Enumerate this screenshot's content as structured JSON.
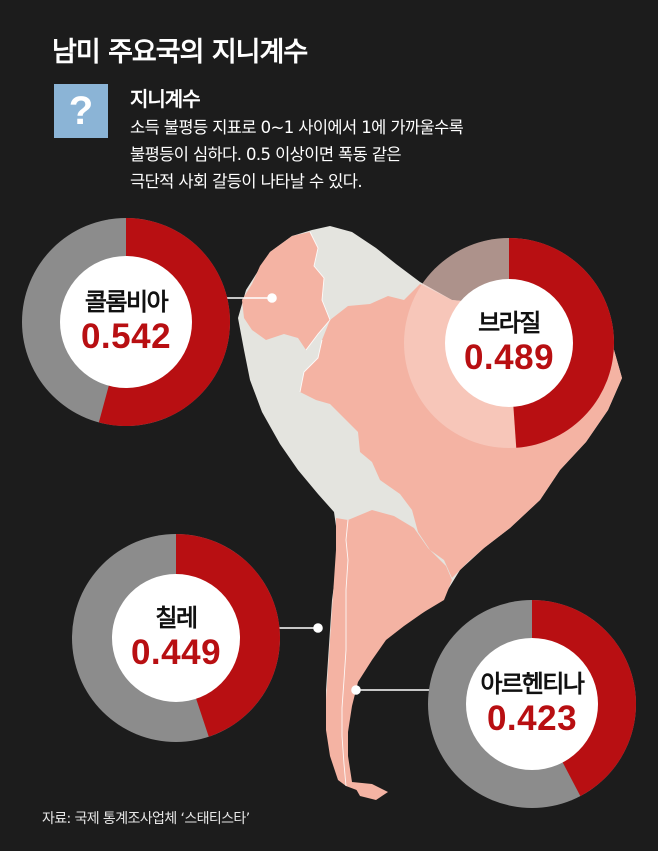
{
  "title": "남미 주요국의 지니계수",
  "question_mark": "?",
  "definition": {
    "title": "지니계수",
    "lines": [
      "소득 불평등 지표로 0~1 사이에서 1에 가까울수록",
      "불평등이 심하다. 0.5 이상이면 폭동 같은",
      "극단적 사회 갈등이 나타날 수 있다."
    ]
  },
  "chart_data": {
    "type": "pie",
    "chart_type_detail": "donut",
    "ylim": [
      0,
      1
    ],
    "categories": [
      "콜롬비아",
      "브라질",
      "칠레",
      "아르헨티나"
    ],
    "values": [
      0.542,
      0.489,
      0.449,
      0.423
    ],
    "value_labels": [
      "0.542",
      "0.489",
      "0.449",
      "0.423"
    ]
  },
  "source": "자료: 국제 통계조사업체 ‘스태티스타’",
  "colors": {
    "background": "#1c1c1c",
    "value_fill": "#b80f12",
    "remainder_fill": "#8c8c8c",
    "map_highlight": "#f4b3a3",
    "map_other": "#e4e4df",
    "question_box": "#8bb4d6"
  }
}
